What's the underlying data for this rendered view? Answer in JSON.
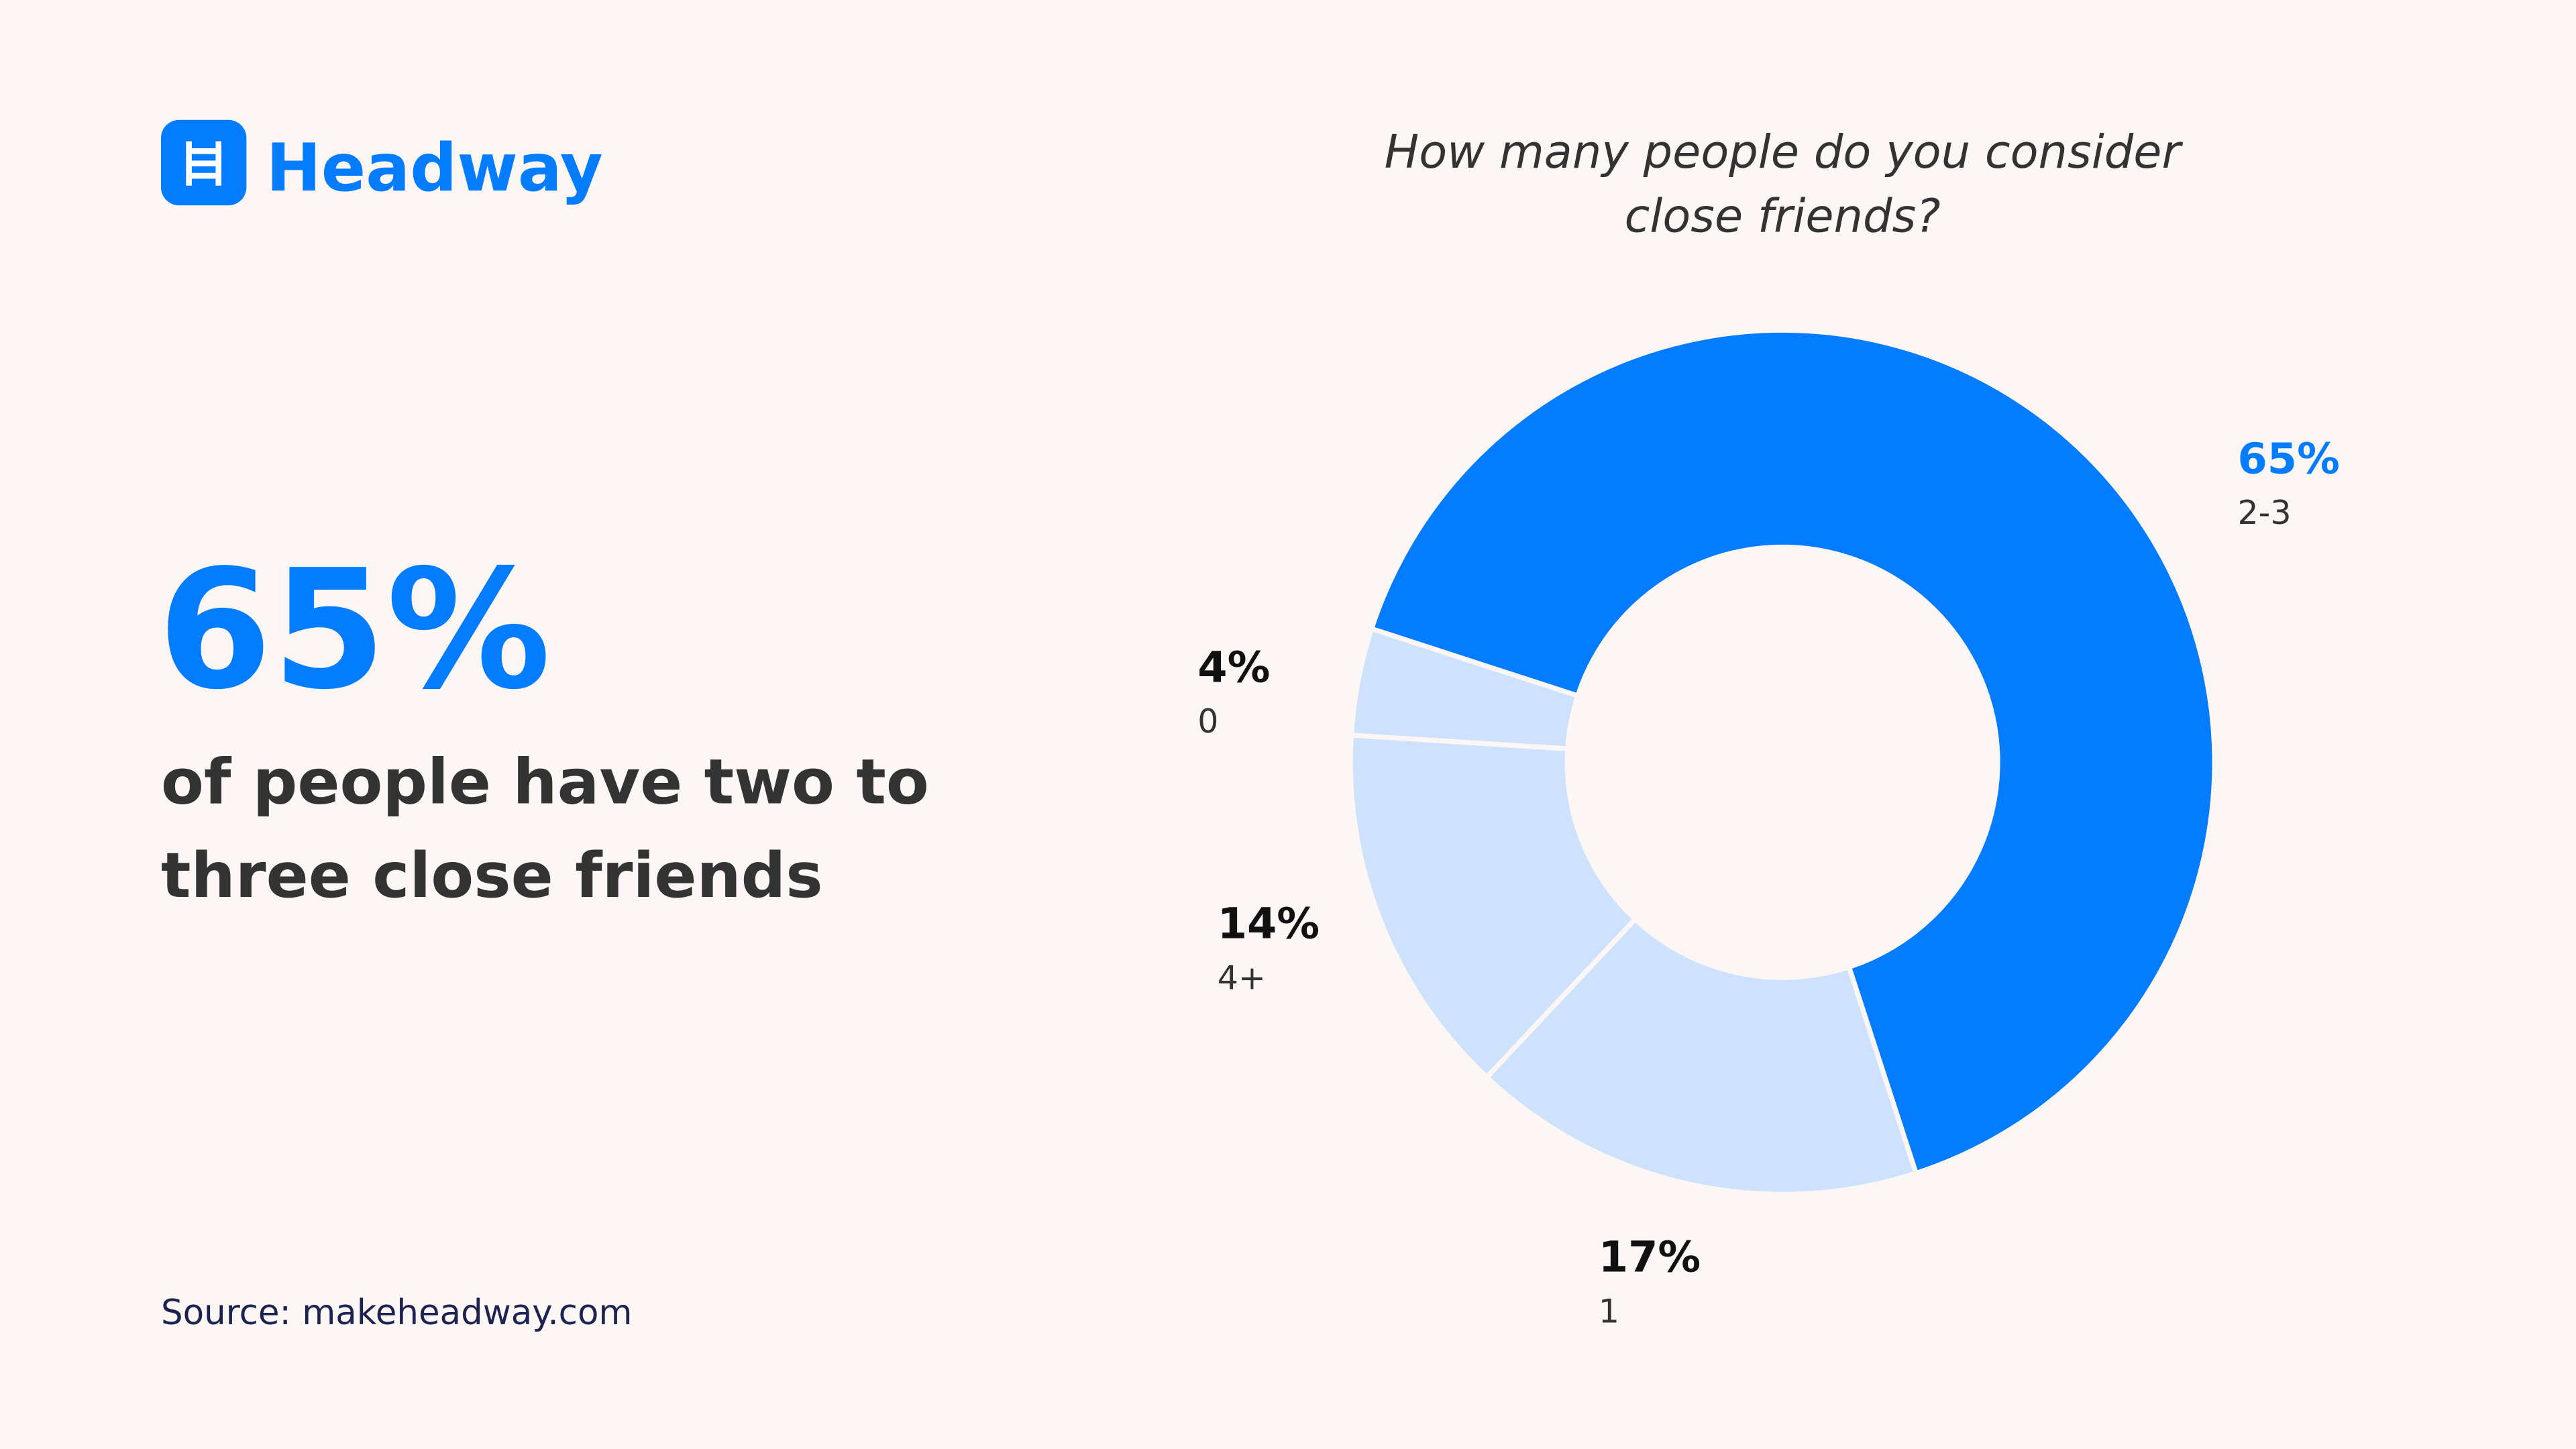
{
  "logo": "Headway",
  "headline": {
    "stat": "65%",
    "lines": [
      "of people have two to",
      "three close friends"
    ]
  },
  "source": "Source: makeheadway.com",
  "chart_data": {
    "type": "donut",
    "title": [
      "How many people do you consider",
      "close friends?"
    ],
    "categories": [
      "2-3",
      "1",
      "4+",
      "0"
    ],
    "values": [
      65,
      17,
      14,
      4
    ],
    "value_labels": [
      "65%",
      "17%",
      "14%",
      "4%"
    ],
    "colors": [
      "#037cff",
      "#cfe2fd",
      "#cfe2fd",
      "#cfe2fd"
    ]
  }
}
